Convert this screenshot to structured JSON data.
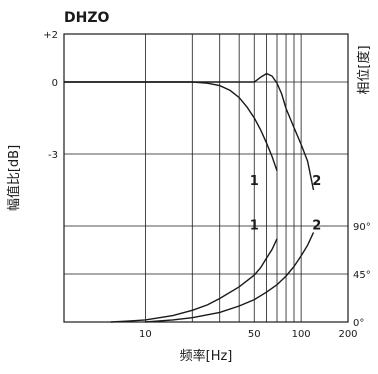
{
  "chart_data": {
    "type": "line",
    "title": "DHZO",
    "xlabel": "频率[Hz]",
    "ylabel_left": "幅值比[dB]",
    "ylabel_right": "相位[度]",
    "x_scale": "log",
    "xlim": [
      3,
      200
    ],
    "x_ticks": [
      10,
      50,
      100,
      200
    ],
    "x_tick_labels": [
      "10",
      "50",
      "100",
      "200"
    ],
    "amplitude_axis": {
      "ylim": [
        -10,
        2
      ],
      "ticks": [
        2,
        0,
        -3
      ],
      "tick_labels": [
        "+2",
        "0",
        "-3"
      ]
    },
    "phase_axis": {
      "ylim": [
        0,
        180
      ],
      "ticks": [
        0,
        45,
        90
      ],
      "tick_labels": [
        "0°",
        "45°",
        "90°"
      ]
    },
    "grid": true,
    "series": [
      {
        "name": "1",
        "kind": "amplitude",
        "x": [
          3,
          20,
          25,
          30,
          35,
          40,
          45,
          50,
          55,
          60,
          65,
          70
        ],
        "y": [
          0,
          0,
          -0.05,
          -0.15,
          -0.35,
          -0.65,
          -1.05,
          -1.5,
          -2.0,
          -2.55,
          -3.1,
          -3.7
        ]
      },
      {
        "name": "2",
        "kind": "amplitude",
        "x": [
          3,
          50,
          55,
          60,
          65,
          70,
          75,
          80,
          90,
          100,
          110,
          120
        ],
        "y": [
          0,
          0,
          0.2,
          0.35,
          0.25,
          -0.05,
          -0.5,
          -1.1,
          -1.9,
          -2.6,
          -3.3,
          -4.5
        ]
      },
      {
        "name": "1",
        "kind": "phase",
        "x": [
          6,
          8,
          10,
          15,
          20,
          25,
          30,
          40,
          50,
          55,
          60,
          65,
          70
        ],
        "y": [
          0,
          1,
          2,
          6,
          11,
          16,
          22,
          33,
          44,
          51,
          60,
          68,
          78
        ]
      },
      {
        "name": "2",
        "kind": "phase",
        "x": [
          10,
          15,
          20,
          30,
          40,
          50,
          60,
          70,
          80,
          90,
          100,
          110,
          120
        ],
        "y": [
          0,
          2,
          4,
          9,
          15,
          21,
          28,
          35,
          43,
          52,
          62,
          72,
          84
        ]
      }
    ],
    "curve_labels": [
      {
        "text": "1",
        "x": 50,
        "y": -4.3
      },
      {
        "text": "2",
        "x": 126,
        "y": -4.3
      },
      {
        "text": "1",
        "x": 50,
        "y": -6.15
      },
      {
        "text": "2",
        "x": 126,
        "y": -6.15
      }
    ]
  }
}
